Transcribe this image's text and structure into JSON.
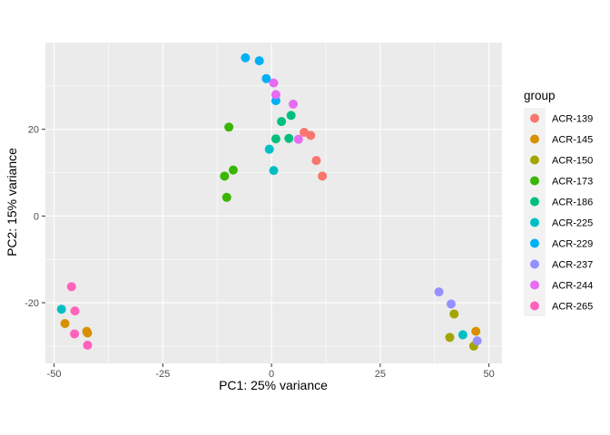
{
  "chart_data": {
    "type": "scatter",
    "xlabel": "PC1: 25% variance",
    "ylabel": "PC2: 15% variance",
    "xlim": [
      -52,
      53
    ],
    "ylim": [
      -34,
      40
    ],
    "xticks": [
      -50,
      -25,
      0,
      25,
      50
    ],
    "yticks": [
      -20,
      0,
      20
    ],
    "xtick_labels": [
      "-50",
      "-25",
      "0",
      "25",
      "50"
    ],
    "ytick_labels": [
      "-20",
      "0",
      "20"
    ],
    "grid": true,
    "legend": {
      "title": "group",
      "placement": "right"
    },
    "series": [
      {
        "name": "ACR-139",
        "color": "#F8766D",
        "points": [
          [
            7.5,
            19.3
          ],
          [
            9,
            18.6
          ],
          [
            10.3,
            12.8
          ],
          [
            11.7,
            9.2
          ]
        ]
      },
      {
        "name": "ACR-145",
        "color": "#D89000",
        "points": [
          [
            -47.5,
            -24.8
          ],
          [
            -42.5,
            -26.6
          ],
          [
            -42.3,
            -27
          ],
          [
            47,
            -26.6
          ]
        ]
      },
      {
        "name": "ACR-150",
        "color": "#A3A500",
        "points": [
          [
            42,
            -22.6
          ],
          [
            41,
            -28
          ],
          [
            46.5,
            -30
          ]
        ]
      },
      {
        "name": "ACR-173",
        "color": "#39B600",
        "points": [
          [
            -9.8,
            20.5
          ],
          [
            -8.8,
            10.6
          ],
          [
            -10.8,
            9.2
          ],
          [
            -10.3,
            4.3
          ]
        ]
      },
      {
        "name": "ACR-186",
        "color": "#00BF7D",
        "points": [
          [
            4.5,
            23.2
          ],
          [
            2.3,
            21.8
          ],
          [
            1,
            17.8
          ],
          [
            4,
            17.9
          ]
        ]
      },
      {
        "name": "ACR-225",
        "color": "#00BFC4",
        "points": [
          [
            -0.5,
            15.4
          ],
          [
            0.5,
            10.5
          ],
          [
            -48.3,
            -21.5
          ],
          [
            44,
            -27.4
          ]
        ]
      },
      {
        "name": "ACR-229",
        "color": "#00B0F6",
        "points": [
          [
            -6,
            36.5
          ],
          [
            -2.8,
            35.8
          ],
          [
            -1.2,
            31.7
          ],
          [
            1,
            26.6
          ]
        ]
      },
      {
        "name": "ACR-237",
        "color": "#9590FF",
        "points": [
          [
            38.5,
            -17.5
          ],
          [
            41.3,
            -20.3
          ],
          [
            47.3,
            -28.8
          ]
        ]
      },
      {
        "name": "ACR-244",
        "color": "#E76BF3",
        "points": [
          [
            0.5,
            30.7
          ],
          [
            1,
            28
          ],
          [
            5,
            25.8
          ],
          [
            6.2,
            17.7
          ]
        ]
      },
      {
        "name": "ACR-265",
        "color": "#FF62BC",
        "points": [
          [
            -46,
            -16.3
          ],
          [
            -45.2,
            -21.9
          ],
          [
            -45.3,
            -27.2
          ],
          [
            -42.3,
            -29.8
          ]
        ]
      }
    ]
  }
}
